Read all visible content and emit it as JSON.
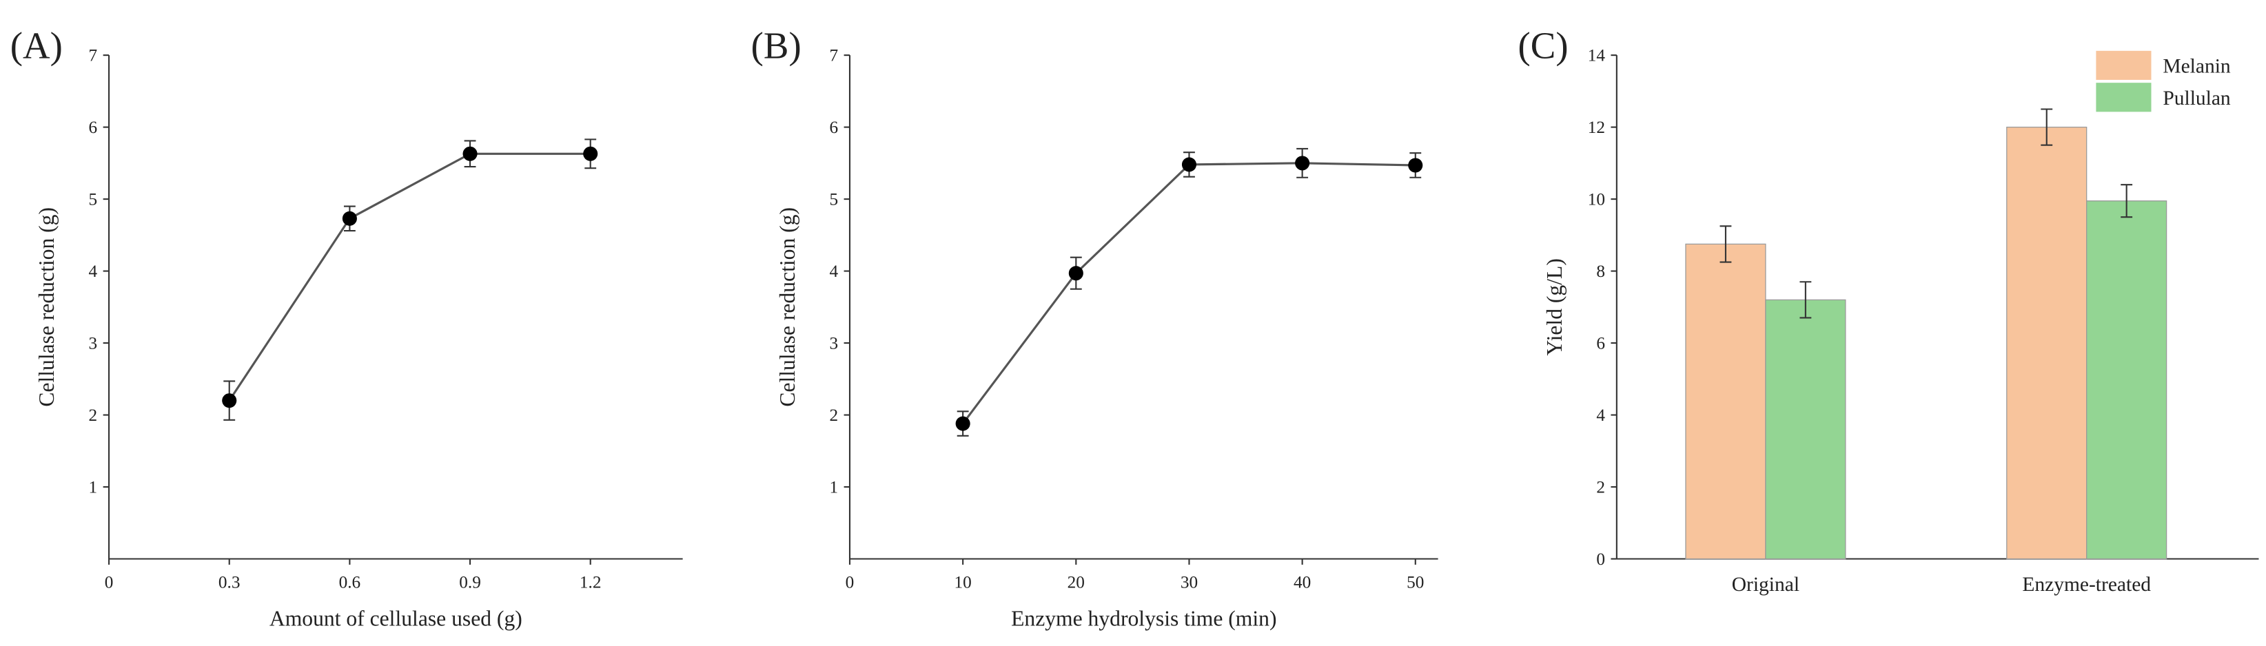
{
  "chart_data": [
    {
      "type": "line",
      "panel_label": "(A)",
      "xlabel": "Amount of cellulase used (g)",
      "ylabel": "Cellulase reduction (g)",
      "x": [
        0.3,
        0.6,
        0.9,
        1.2
      ],
      "values": [
        2.2,
        4.73,
        5.63,
        5.63
      ],
      "errors": [
        0.27,
        0.17,
        0.18,
        0.2
      ],
      "xlim": [
        0,
        1.43
      ],
      "xticks": [
        0,
        0.3,
        0.6,
        0.9,
        1.2
      ],
      "ylim": [
        0,
        7
      ],
      "yticks": [
        1,
        2,
        3,
        4,
        5,
        6,
        7
      ],
      "color": "#555555"
    },
    {
      "type": "line",
      "panel_label": "(B)",
      "xlabel": "Enzyme hydrolysis time (min)",
      "ylabel": "Cellulase reduction (g)",
      "x": [
        10,
        20,
        30,
        40,
        50
      ],
      "values": [
        1.88,
        3.97,
        5.48,
        5.5,
        5.47
      ],
      "errors": [
        0.17,
        0.22,
        0.17,
        0.2,
        0.17
      ],
      "xlim": [
        0,
        52
      ],
      "xticks": [
        0,
        10,
        20,
        30,
        40,
        50
      ],
      "ylim": [
        0,
        7
      ],
      "yticks": [
        1,
        2,
        3,
        4,
        5,
        6,
        7
      ],
      "color": "#555555"
    },
    {
      "type": "bar",
      "panel_label": "(C)",
      "ylabel": "Yield (g/L)",
      "categories": [
        "Original",
        "Enzyme-treated"
      ],
      "series": [
        {
          "name": "Melanin",
          "color": "#f8c49c",
          "values": [
            8.75,
            12.0
          ],
          "errors": [
            0.5,
            0.5
          ]
        },
        {
          "name": "Pullulan",
          "color": "#93d593",
          "values": [
            7.2,
            9.95
          ],
          "errors": [
            0.5,
            0.45
          ]
        }
      ],
      "ylim": [
        0,
        14
      ],
      "yticks": [
        0,
        2,
        4,
        6,
        8,
        10,
        12,
        14
      ],
      "legend": "upper right"
    }
  ]
}
